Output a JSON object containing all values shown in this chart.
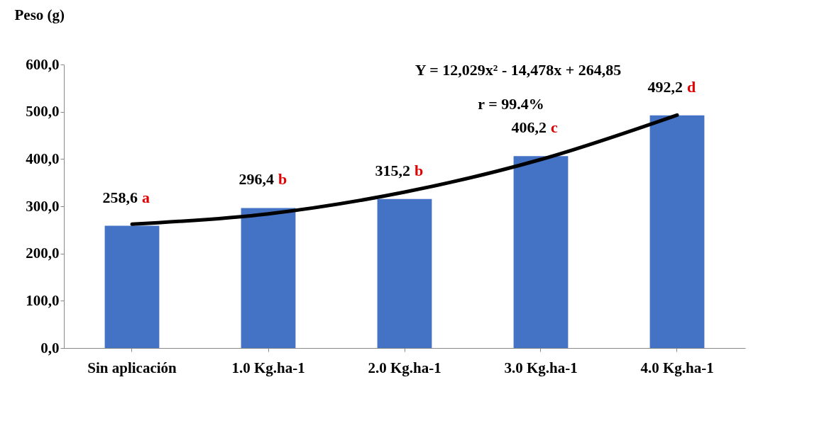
{
  "chart_data": {
    "type": "bar",
    "ylabel": "Peso (g)",
    "categories": [
      "Sin aplicación",
      "1.0 Kg.ha-1",
      "2.0 Kg.ha-1",
      "3.0  Kg.ha-1",
      "4.0  Kg.ha-1"
    ],
    "series": [
      {
        "color": "#4472c4",
        "values": [
          258.6,
          296.4,
          315.2,
          406.2,
          492.2
        ],
        "value_labels": [
          "258,6",
          "296,4",
          "315,2",
          "406,2",
          "492,2"
        ]
      },
      {
        "type": "line",
        "color": "#000000",
        "values": [
          262,
          284,
          330,
          399,
          493
        ]
      }
    ],
    "ylim": [
      0,
      600
    ],
    "yticks": [
      {
        "value": 0,
        "label": "0,0"
      },
      {
        "value": 100,
        "label": "100,0"
      },
      {
        "value": 200,
        "label": "200,0"
      },
      {
        "value": 300,
        "label": "300,0"
      },
      {
        "value": 400,
        "label": "400,0"
      },
      {
        "value": 500,
        "label": "500,0"
      },
      {
        "value": 600,
        "label": "600,0"
      }
    ],
    "grid": false,
    "annotations": [
      {
        "text": "a",
        "x": "Sin aplicación",
        "y": 258.6
      },
      {
        "text": "b",
        "x": "1.0 Kg.ha-1",
        "y": 296.4
      },
      {
        "text": "b",
        "x": "2.0 Kg.ha-1",
        "y": 315.2
      },
      {
        "text": "c",
        "x": "3.0  Kg.ha-1",
        "y": 406.2
      },
      {
        "text": "d",
        "x": "4.0  Kg.ha-1",
        "y": 492.2
      },
      "Y = 12,029x² - 14,478x + 264,85",
      "r = 99.4%"
    ]
  }
}
